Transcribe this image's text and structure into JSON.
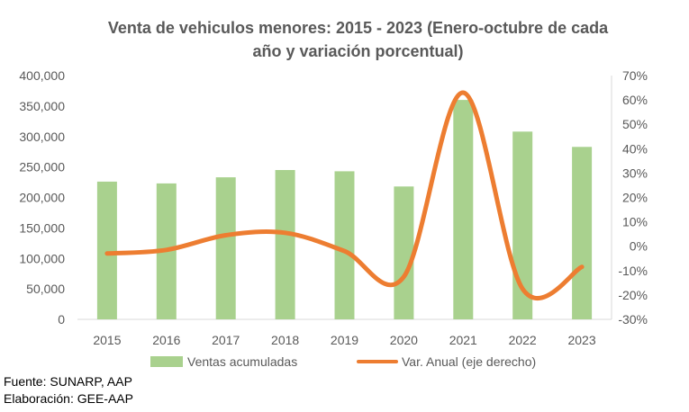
{
  "chart_data": {
    "type": "bar",
    "title_line1": "Venta de vehiculos menores: 2015 - 2023 (Enero-octubre de cada",
    "title_line2": "año y variación porcentual)",
    "categories": [
      "2015",
      "2016",
      "2017",
      "2018",
      "2019",
      "2020",
      "2021",
      "2022",
      "2023"
    ],
    "series": [
      {
        "name": "Ventas acumuladas",
        "type": "bar",
        "axis": "left",
        "color": "#a9d18e",
        "values": [
          226000,
          223000,
          233000,
          245000,
          243000,
          218000,
          360000,
          308000,
          283000
        ]
      },
      {
        "name": "Var. Anual (eje derecho)",
        "type": "line",
        "axis": "right",
        "color": "#ed7d31",
        "values": [
          -3,
          -1.5,
          4.5,
          5.5,
          -2,
          -12.5,
          63,
          -17.5,
          -8.5
        ]
      }
    ],
    "y_left": {
      "ylim": [
        0,
        400000
      ],
      "ticks": [
        "0",
        "50,000",
        "100,000",
        "150,000",
        "200,000",
        "250,000",
        "300,000",
        "350,000",
        "400,000"
      ]
    },
    "y_right": {
      "ylim": [
        -30,
        70
      ],
      "ticks": [
        "-30%",
        "-20%",
        "-10%",
        "0%",
        "10%",
        "20%",
        "30%",
        "40%",
        "50%",
        "60%",
        "70%"
      ]
    },
    "grid": false,
    "legend_position": "bottom"
  },
  "footnotes": {
    "source": "Fuente: SUNARP, AAP",
    "elaboration": "Elaboración: GEE-AAP"
  }
}
